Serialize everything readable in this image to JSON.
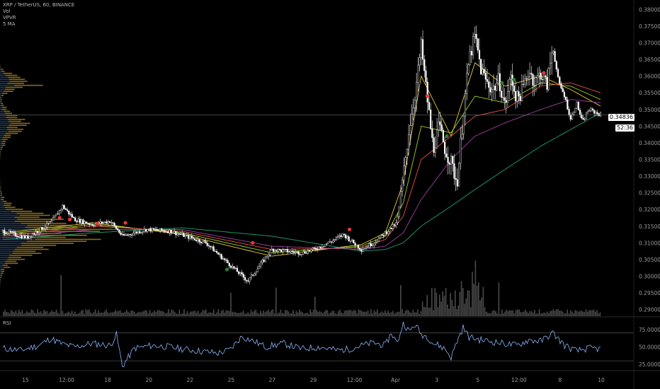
{
  "legend": {
    "symbol": "XRP / TetherUS, 60, BINANCE",
    "vol": "Vol",
    "vpvr": "VPVR",
    "ma": "5 MA"
  },
  "rsi_label": "RSI",
  "price_tag": "0.34836",
  "time_tag": "52:36",
  "colors": {
    "candle": "#ffffff",
    "volume": "#4a4a4a",
    "vpvr_up": "#1e3a5f",
    "vpvr_down": "#8a6a1a",
    "ma1": "#e8c840",
    "ma2": "#a0d020",
    "ma3": "#e85050",
    "ma4": "#a040a0",
    "ma5": "#20a070",
    "rsi": "#8ab4f8",
    "marker_red": "#e53935",
    "marker_green": "#2e7d32"
  },
  "chart_data": [
    {
      "type": "candlestick",
      "title": "XRP / TetherUS, 60, BINANCE",
      "x_ticks": [
        "15",
        "12:00",
        "18",
        "20",
        "22",
        "25",
        "27",
        "29",
        "12:00",
        "Apr",
        "3",
        "5",
        "12:00",
        "8",
        "10"
      ],
      "y_ticks": [
        0.29,
        0.295,
        0.3,
        0.305,
        0.31,
        0.315,
        0.32,
        0.325,
        0.33,
        0.335,
        0.34,
        0.345,
        0.35,
        0.355,
        0.36,
        0.365,
        0.37,
        0.375,
        0.38
      ],
      "y_tick_labels": [
        "0.29000",
        "0.29500",
        "0.30000",
        "0.30500",
        "0.31000",
        "0.31500",
        "0.32000",
        "0.32500",
        "0.33000",
        "0.33500",
        "0.34000",
        "0.34500",
        "0.35000",
        "0.35500",
        "0.36000",
        "0.36500",
        "0.37000",
        "0.37500",
        "0.38000"
      ],
      "ylim": [
        0.288,
        0.382
      ],
      "last_price": 0.34836,
      "price_path": {
        "t": [
          0,
          4,
          8,
          10,
          12,
          15,
          18,
          20,
          24,
          28,
          34,
          37,
          41,
          45,
          50,
          52,
          55,
          57,
          60,
          62,
          64,
          65,
          66,
          67,
          68,
          69,
          70,
          72,
          73,
          74,
          75,
          76,
          77,
          78,
          79,
          80,
          81,
          82,
          83,
          84,
          85,
          86,
          87,
          88,
          89,
          90,
          91,
          92,
          93,
          94,
          95,
          96,
          97,
          98,
          100
        ],
        "close": [
          0.3135,
          0.3115,
          0.316,
          0.321,
          0.317,
          0.3155,
          0.3165,
          0.312,
          0.314,
          0.3135,
          0.31,
          0.305,
          0.2985,
          0.308,
          0.307,
          0.308,
          0.3105,
          0.3125,
          0.308,
          0.31,
          0.313,
          0.3145,
          0.316,
          0.33,
          0.345,
          0.355,
          0.369,
          0.338,
          0.345,
          0.338,
          0.334,
          0.328,
          0.348,
          0.365,
          0.372,
          0.362,
          0.358,
          0.356,
          0.359,
          0.351,
          0.36,
          0.353,
          0.356,
          0.362,
          0.358,
          0.361,
          0.357,
          0.369,
          0.358,
          0.354,
          0.347,
          0.352,
          0.346,
          0.35,
          0.3484
        ]
      },
      "moving_averages": [
        {
          "key": "ma1",
          "t": [
            0,
            15,
            30,
            45,
            60,
            64,
            67,
            70,
            75,
            79,
            84,
            90,
            95,
            100
          ],
          "y": [
            0.313,
            0.316,
            0.3125,
            0.306,
            0.3095,
            0.313,
            0.328,
            0.36,
            0.342,
            0.364,
            0.357,
            0.36,
            0.356,
            0.351
          ]
        },
        {
          "key": "ma2",
          "t": [
            0,
            15,
            30,
            45,
            60,
            64,
            67,
            70,
            75,
            79,
            84,
            90,
            95,
            100
          ],
          "y": [
            0.3125,
            0.3155,
            0.313,
            0.307,
            0.309,
            0.312,
            0.322,
            0.345,
            0.343,
            0.354,
            0.352,
            0.358,
            0.357,
            0.353
          ]
        },
        {
          "key": "ma3",
          "t": [
            0,
            15,
            30,
            45,
            60,
            64,
            67,
            70,
            75,
            79,
            84,
            90,
            95,
            100
          ],
          "y": [
            0.312,
            0.315,
            0.3135,
            0.308,
            0.3085,
            0.311,
            0.318,
            0.335,
            0.342,
            0.348,
            0.35,
            0.357,
            0.358,
            0.355
          ]
        },
        {
          "key": "ma4",
          "t": [
            0,
            15,
            30,
            45,
            60,
            64,
            67,
            70,
            75,
            79,
            84,
            90,
            95,
            100
          ],
          "y": [
            0.3115,
            0.314,
            0.314,
            0.309,
            0.308,
            0.309,
            0.313,
            0.323,
            0.335,
            0.342,
            0.346,
            0.35,
            0.353,
            0.352
          ]
        },
        {
          "key": "ma5",
          "t": [
            0,
            15,
            30,
            45,
            60,
            64,
            67,
            70,
            75,
            79,
            84,
            90,
            95,
            100
          ],
          "y": [
            0.311,
            0.313,
            0.3145,
            0.312,
            0.3075,
            0.308,
            0.31,
            0.315,
            0.321,
            0.326,
            0.332,
            0.339,
            0.344,
            0.349
          ]
        }
      ],
      "markers": [
        {
          "t": 9.5,
          "y": 0.3175,
          "color": "marker_red"
        },
        {
          "t": 11.2,
          "y": 0.317,
          "color": "marker_red"
        },
        {
          "t": 15.8,
          "y": 0.3158,
          "color": "marker_red"
        },
        {
          "t": 20.5,
          "y": 0.316,
          "color": "marker_red"
        },
        {
          "t": 37.5,
          "y": 0.302,
          "color": "marker_green"
        },
        {
          "t": 41.8,
          "y": 0.31,
          "color": "marker_red"
        },
        {
          "t": 58.0,
          "y": 0.314,
          "color": "marker_red"
        },
        {
          "t": 71.0,
          "y": 0.354,
          "color": "marker_red"
        },
        {
          "t": 74.3,
          "y": 0.342,
          "color": "marker_green"
        },
        {
          "t": 83.5,
          "y": 0.358,
          "color": "marker_green"
        },
        {
          "t": 85.5,
          "y": 0.359,
          "color": "marker_green"
        },
        {
          "t": 90.5,
          "y": 0.361,
          "color": "marker_red"
        }
      ]
    },
    {
      "type": "line",
      "title": "RSI",
      "y_ticks": [
        25,
        50,
        75
      ],
      "y_tick_labels": [
        "25.0000",
        "50.0000",
        "75.0000"
      ],
      "ylim": [
        18,
        86
      ],
      "bands": [
        30,
        70
      ],
      "rsi_path": {
        "t": [
          0,
          3,
          6,
          8,
          10,
          12,
          15,
          18,
          19,
          20,
          22,
          25,
          28,
          30,
          33,
          36,
          38,
          40,
          42,
          44,
          47,
          50,
          53,
          56,
          58,
          60,
          62,
          64,
          65,
          66,
          67,
          68,
          69,
          70,
          71,
          72,
          73,
          74,
          75,
          76,
          77,
          78,
          80,
          83,
          86,
          88,
          90,
          92,
          94,
          96,
          98,
          100
        ],
        "y": [
          48,
          45,
          52,
          62,
          54,
          50,
          55,
          52,
          68,
          22,
          48,
          52,
          50,
          47,
          44,
          41,
          46,
          65,
          58,
          50,
          55,
          47,
          50,
          45,
          47,
          52,
          56,
          52,
          70,
          55,
          85,
          72,
          82,
          68,
          65,
          55,
          52,
          47,
          35,
          58,
          78,
          64,
          60,
          56,
          52,
          60,
          58,
          70,
          52,
          44,
          48,
          47
        ]
      }
    }
  ]
}
